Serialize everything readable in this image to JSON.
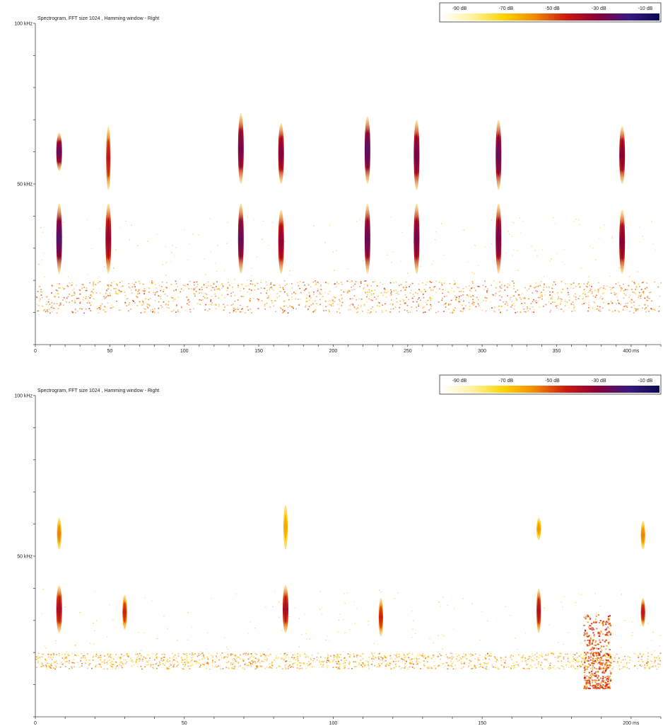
{
  "chart_data": [
    {
      "type": "heatmap",
      "title": "Spectrogram, FFT size 1024 , Hamming window - Right",
      "x_unit": "ms",
      "y_unit": "kHz",
      "xlim": [
        0,
        420
      ],
      "ylim": [
        0,
        100
      ],
      "x_ticks": [
        "0",
        "50",
        "100",
        "150",
        "200",
        "250",
        "300",
        "350",
        "400 ms"
      ],
      "x_tick_values": [
        0,
        50,
        100,
        150,
        200,
        250,
        300,
        350,
        400
      ],
      "y_ticks": [
        "100 kHz",
        "50 kHz"
      ],
      "y_tick_values": [
        100,
        50
      ],
      "colorbar": {
        "labels": [
          "-90 dB",
          "-70 dB",
          "-50 dB",
          "-30 dB",
          "-10 dB"
        ],
        "colors": [
          "#ffffff",
          "#fff3a0",
          "#ffd400",
          "#f28a00",
          "#cc1a10",
          "#8a0038",
          "#3a1a80",
          "#0a0a50"
        ]
      },
      "calls": [
        {
          "t": 16,
          "parts": [
            {
              "f_low": 54,
              "f_high": 66,
              "db": -28
            },
            {
              "f_low": 22,
              "f_high": 44,
              "db": -25
            }
          ]
        },
        {
          "t": 49,
          "parts": [
            {
              "f_low": 48,
              "f_high": 68,
              "db": -42
            },
            {
              "f_low": 22,
              "f_high": 44,
              "db": -35
            }
          ]
        },
        {
          "t": 138,
          "parts": [
            {
              "f_low": 50,
              "f_high": 72,
              "db": -30
            },
            {
              "f_low": 22,
              "f_high": 44,
              "db": -28
            }
          ]
        },
        {
          "t": 165,
          "parts": [
            {
              "f_low": 50,
              "f_high": 69,
              "db": -32
            },
            {
              "f_low": 22,
              "f_high": 42,
              "db": -34
            }
          ]
        },
        {
          "t": 223,
          "parts": [
            {
              "f_low": 50,
              "f_high": 71,
              "db": -26
            },
            {
              "f_low": 22,
              "f_high": 44,
              "db": -28
            }
          ]
        },
        {
          "t": 256,
          "parts": [
            {
              "f_low": 48,
              "f_high": 70,
              "db": -30
            },
            {
              "f_low": 22,
              "f_high": 44,
              "db": -30
            }
          ]
        },
        {
          "t": 311,
          "parts": [
            {
              "f_low": 48,
              "f_high": 70,
              "db": -28
            },
            {
              "f_low": 22,
              "f_high": 44,
              "db": -30
            }
          ]
        },
        {
          "t": 394,
          "parts": [
            {
              "f_low": 50,
              "f_high": 68,
              "db": -33
            },
            {
              "f_low": 22,
              "f_high": 42,
              "db": -33
            }
          ]
        }
      ],
      "noise_band": {
        "f_low": 10,
        "f_high": 20,
        "db": -55
      }
    },
    {
      "type": "heatmap",
      "title": "Spectrogram, FFT size 1024 , Hamming window - Right",
      "x_unit": "ms",
      "y_unit": "kHz",
      "xlim": [
        0,
        210
      ],
      "ylim": [
        0,
        100
      ],
      "x_ticks": [
        "0",
        "50",
        "100",
        "150",
        "200 ms"
      ],
      "x_tick_values": [
        0,
        50,
        100,
        150,
        200
      ],
      "y_ticks": [
        "100 kHz",
        "50 kHz"
      ],
      "y_tick_values": [
        100,
        50
      ],
      "colorbar": {
        "labels": [
          "-90 dB",
          "-70 dB",
          "-50 dB",
          "-30 dB",
          "-10 dB"
        ],
        "colors": [
          "#ffffff",
          "#fff3a0",
          "#ffd400",
          "#f28a00",
          "#cc1a10",
          "#8a0038",
          "#3a1a80",
          "#0a0a50"
        ]
      },
      "calls": [
        {
          "t": 8,
          "parts": [
            {
              "f_low": 52,
              "f_high": 62,
              "db": -55
            },
            {
              "f_low": 26,
              "f_high": 41,
              "db": -38
            }
          ]
        },
        {
          "t": 30,
          "parts": [
            {
              "f_low": 27,
              "f_high": 38,
              "db": -45
            }
          ]
        },
        {
          "t": 84,
          "parts": [
            {
              "f_low": 52,
              "f_high": 66,
              "db": -60
            },
            {
              "f_low": 26,
              "f_high": 41,
              "db": -38
            }
          ]
        },
        {
          "t": 116,
          "parts": [
            {
              "f_low": 25,
              "f_high": 37,
              "db": -45
            }
          ]
        },
        {
          "t": 169,
          "parts": [
            {
              "f_low": 55,
              "f_high": 62,
              "db": -58
            },
            {
              "f_low": 26,
              "f_high": 40,
              "db": -40
            }
          ]
        },
        {
          "t": 204,
          "parts": [
            {
              "f_low": 52,
              "f_high": 61,
              "db": -55
            },
            {
              "f_low": 28,
              "f_high": 37,
              "db": -42
            }
          ]
        }
      ],
      "noise_band": {
        "f_low": 15,
        "f_high": 20,
        "db": -60
      },
      "noise_patch": {
        "t_start": 184,
        "t_end": 193,
        "f_low": 9,
        "f_high": 32,
        "db": -50
      }
    }
  ]
}
